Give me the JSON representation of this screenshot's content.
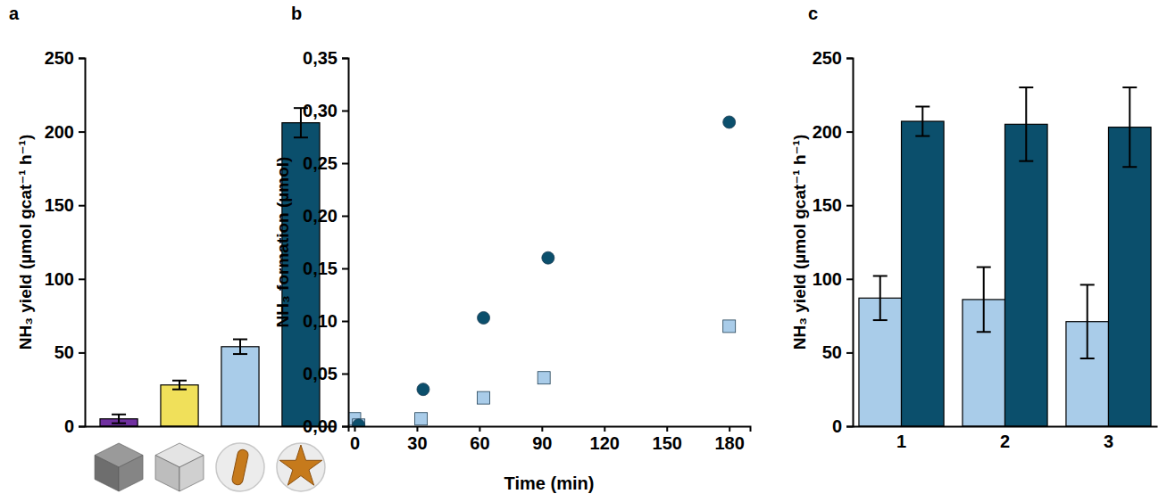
{
  "chart_data": [
    {
      "type": "bar",
      "title": "a",
      "y_label": "NH₃ yield  (µmol gcat⁻¹ h⁻¹)",
      "categories": [
        null,
        null,
        null,
        null
      ],
      "values": [
        5,
        28,
        54,
        206
      ],
      "errors": [
        3,
        3,
        5,
        10
      ],
      "colors": [
        "#7030a0",
        "#f0e05a",
        "#a9cce9",
        "#0b4f6c"
      ],
      "ylim": [
        0,
        250
      ],
      "yticks": [
        0,
        50,
        100,
        150,
        200,
        250
      ]
    },
    {
      "type": "scatter",
      "title": "b",
      "x_label": "Time (min)",
      "y_label": "NH₃ formation (µmol)",
      "series": [
        {
          "color": "#a9cce9",
          "marker": "square",
          "x": [
            0,
            2,
            32,
            62,
            91,
            180
          ],
          "values": [
            0.007,
            0.001,
            0.007,
            0.027,
            0.046,
            0.095
          ]
        },
        {
          "color": "#0b4f6c",
          "marker": "circle",
          "x": [
            2,
            33,
            62,
            93,
            180
          ],
          "values": [
            0.001,
            0.035,
            0.103,
            0.16,
            0.289
          ]
        }
      ],
      "xlim": [
        -3,
        190
      ],
      "xticks": [
        0,
        30,
        60,
        90,
        120,
        150,
        180
      ],
      "ylim": [
        0,
        0.35
      ],
      "yticks": [
        {
          "value": 0,
          "label": "0,00"
        },
        {
          "value": 0.05,
          "label": "0,05"
        },
        {
          "value": 0.1,
          "label": "0,10"
        },
        {
          "value": 0.15,
          "label": "0,15"
        },
        {
          "value": 0.2,
          "label": "0,20"
        },
        {
          "value": 0.25,
          "label": "0,25"
        },
        {
          "value": 0.3,
          "label": "0,30"
        },
        {
          "value": 0.35,
          "label": "0,35"
        }
      ]
    },
    {
      "type": "bar",
      "title": "c",
      "y_label": "NH₃ yield  (µmol gcat⁻¹ h⁻¹)",
      "categories": [
        "1",
        "2",
        "3"
      ],
      "series": [
        {
          "color": "#a9cce9",
          "values": [
            87,
            86,
            71
          ],
          "errors": [
            15,
            22,
            25
          ]
        },
        {
          "color": "#0b4f6c",
          "values": [
            207,
            205,
            203
          ],
          "errors": [
            10,
            25,
            27
          ]
        }
      ],
      "ylim": [
        0,
        250
      ],
      "yticks": [
        0,
        50,
        100,
        150,
        200,
        250
      ]
    }
  ]
}
